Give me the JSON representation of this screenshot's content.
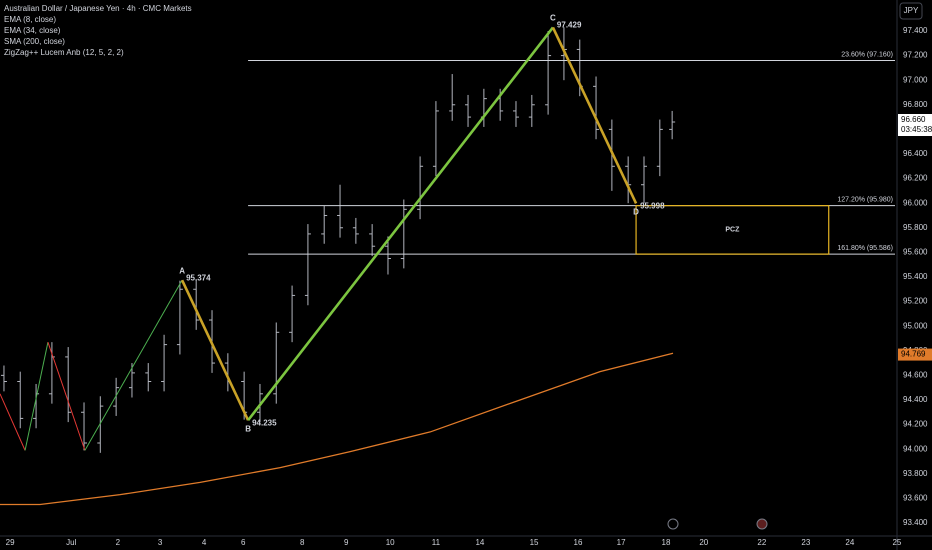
{
  "chart_data": {
    "type": "ohlc",
    "title": "Australian Dollar / Japanese Yen · 4h · CMC Markets",
    "indicators": [
      "EMA (8, close)",
      "EMA (34, close)",
      "SMA (200, close)",
      "ZigZag++ Lucem Anb (12, 5, 2, 2)"
    ],
    "currency": "JPY",
    "xlim": [
      -0.23,
      20.23
    ],
    "xticks": [
      {
        "value": 0,
        "label": "29"
      },
      {
        "value": 1.39,
        "label": "Jul"
      },
      {
        "value": 2.45,
        "label": "2"
      },
      {
        "value": 3.41,
        "label": "3"
      },
      {
        "value": 4.41,
        "label": "4"
      },
      {
        "value": 5.3,
        "label": "6"
      },
      {
        "value": 6.64,
        "label": "8"
      },
      {
        "value": 7.64,
        "label": "9"
      },
      {
        "value": 8.64,
        "label": "10"
      },
      {
        "value": 9.68,
        "label": "11"
      },
      {
        "value": 10.68,
        "label": "14"
      },
      {
        "value": 11.91,
        "label": "15"
      },
      {
        "value": 12.91,
        "label": "16"
      },
      {
        "value": 13.89,
        "label": "17"
      },
      {
        "value": 14.91,
        "label": "18"
      },
      {
        "value": 15.77,
        "label": "20"
      },
      {
        "value": 17.09,
        "label": "22"
      },
      {
        "value": 18.09,
        "label": "23"
      },
      {
        "value": 19.09,
        "label": "24"
      },
      {
        "value": 20.16,
        "label": "25"
      }
    ],
    "ylim": [
      93.302,
      97.652
    ],
    "yticks": [
      {
        "value": 93.4,
        "label": "93.400"
      },
      {
        "value": 93.6,
        "label": "93.600"
      },
      {
        "value": 93.8,
        "label": "93.800"
      },
      {
        "value": 94.0,
        "label": "94.000"
      },
      {
        "value": 94.2,
        "label": "94.200"
      },
      {
        "value": 94.4,
        "label": "94.400"
      },
      {
        "value": 94.6,
        "label": "94.600"
      },
      {
        "value": 94.8,
        "label": "94.800"
      },
      {
        "value": 95.0,
        "label": "95.000"
      },
      {
        "value": 95.2,
        "label": "95.200"
      },
      {
        "value": 95.4,
        "label": "95.400"
      },
      {
        "value": 95.6,
        "label": "95.600"
      },
      {
        "value": 95.8,
        "label": "95.800"
      },
      {
        "value": 96.0,
        "label": "96.000"
      },
      {
        "value": 96.2,
        "label": "96.200"
      },
      {
        "value": 96.4,
        "label": "96.400"
      },
      {
        "value": 96.6,
        "label": "96.600"
      },
      {
        "value": 96.8,
        "label": "96.800"
      },
      {
        "value": 97.0,
        "label": "97.000"
      },
      {
        "value": 97.2,
        "label": "97.200"
      },
      {
        "value": 97.4,
        "label": "97.400"
      }
    ],
    "bar_color": "#b2b5be",
    "x": [
      -0.14,
      0.23,
      0.59,
      0.95,
      1.32,
      1.68,
      2.05,
      2.41,
      2.77,
      3.14,
      3.5,
      3.86,
      4.23,
      4.59,
      4.95,
      5.32,
      5.68,
      6.05,
      6.41,
      6.77,
      7.14,
      7.5,
      7.86,
      8.23,
      8.59,
      8.95,
      9.32,
      9.68,
      10.05,
      10.41,
      10.77,
      11.14,
      11.5,
      11.86,
      12.23,
      12.59,
      12.95,
      13.32,
      13.68,
      14.05,
      14.41,
      14.77,
      15.05
    ],
    "open": [
      94.6,
      94.55,
      94.25,
      94.45,
      94.75,
      94.3,
      94.05,
      94.35,
      94.5,
      94.62,
      94.55,
      94.85,
      95.3,
      95.05,
      94.7,
      94.55,
      94.3,
      94.45,
      94.95,
      95.25,
      95.75,
      95.9,
      95.8,
      95.75,
      95.65,
      95.55,
      95.95,
      96.3,
      96.75,
      96.8,
      96.7,
      96.85,
      96.75,
      96.7,
      96.8,
      97.2,
      97.25,
      96.95,
      96.6,
      96.3,
      96.15,
      96.3,
      96.6
    ],
    "high": [
      94.68,
      94.63,
      94.53,
      94.87,
      94.83,
      94.38,
      94.43,
      94.58,
      94.7,
      94.7,
      94.93,
      95.37,
      95.38,
      95.13,
      94.78,
      94.63,
      94.53,
      95.03,
      95.33,
      95.83,
      95.98,
      96.15,
      95.88,
      95.83,
      95.73,
      96.03,
      96.38,
      96.83,
      97.05,
      96.88,
      96.93,
      96.93,
      96.83,
      96.88,
      97.4,
      97.43,
      97.33,
      97.03,
      96.68,
      96.38,
      96.38,
      96.68,
      96.75
    ],
    "low": [
      94.47,
      94.17,
      94.17,
      94.37,
      94.22,
      93.99,
      93.97,
      94.27,
      94.42,
      94.47,
      94.47,
      94.77,
      94.97,
      94.62,
      94.47,
      94.24,
      94.22,
      94.37,
      94.87,
      95.17,
      95.67,
      95.72,
      95.67,
      95.57,
      95.42,
      95.47,
      95.87,
      96.22,
      96.67,
      96.62,
      96.62,
      96.67,
      96.62,
      96.62,
      96.72,
      97.0,
      96.87,
      96.52,
      96.1,
      96.0,
      96.0,
      96.22,
      96.52
    ],
    "close": [
      94.55,
      94.25,
      94.45,
      94.75,
      94.3,
      94.05,
      94.35,
      94.5,
      94.62,
      94.55,
      94.85,
      95.3,
      95.05,
      94.7,
      94.55,
      94.3,
      94.45,
      94.95,
      95.25,
      95.75,
      95.9,
      95.8,
      95.75,
      95.65,
      95.55,
      95.95,
      96.3,
      96.75,
      96.8,
      96.7,
      96.85,
      96.75,
      96.7,
      96.8,
      97.2,
      97.25,
      96.95,
      96.6,
      96.3,
      96.15,
      96.3,
      96.6,
      96.66
    ],
    "sma": {
      "name": "SMA (200, close)",
      "color": "#e07b2a",
      "x": [
        -0.23,
        0.68,
        2.5,
        4.32,
        6.14,
        7.73,
        9.55,
        11.59,
        13.41,
        15.07
      ],
      "values": [
        93.55,
        93.55,
        93.63,
        93.73,
        93.85,
        93.98,
        94.14,
        94.4,
        94.63,
        94.78
      ]
    },
    "zigzag": {
      "up_color": "#4caf50",
      "down_color": "#e53935",
      "x": [
        -0.23,
        0.34,
        0.86,
        1.7,
        3.91
      ],
      "values": [
        94.45,
        93.99,
        94.87,
        93.99,
        95.374
      ]
    },
    "pattern": {
      "up_color": "#7cc540",
      "down_color": "#c9a227",
      "labels": [
        "A",
        "B",
        "C",
        "D"
      ],
      "x": [
        3.91,
        5.41,
        12.34,
        14.23
      ],
      "values": [
        95.374,
        94.235,
        97.429,
        95.998
      ]
    },
    "levels": [
      {
        "value": 97.16,
        "label": "23.60% (97.160)"
      },
      {
        "value": 95.98,
        "label": "127.20% (95.980)"
      },
      {
        "value": 95.586,
        "label": "161.80% (95.586)"
      }
    ],
    "pcz": {
      "label": "PCZ",
      "color": "#e6b422",
      "x": [
        14.23,
        18.61
      ]
    },
    "last_price": {
      "value": 96.66,
      "label": "96.660",
      "countdown": "03:45:38"
    },
    "sma_last": {
      "value": 94.769,
      "label": "94.769"
    }
  }
}
